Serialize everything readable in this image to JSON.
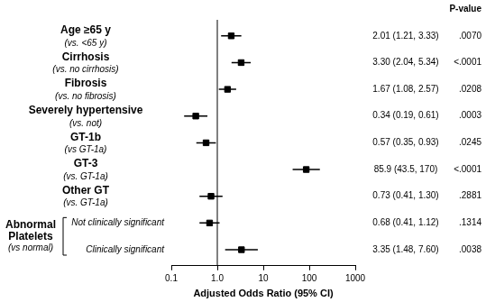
{
  "chart_data": {
    "type": "forest",
    "log": "x",
    "xlim": [
      0.1,
      1000
    ],
    "xticks": [
      0.1,
      {
        "value": 1,
        "label": "1.0"
      },
      10,
      100,
      1000
    ],
    "x_label": "Adjusted Odds Ratio (95% CI)",
    "column_header": "P-value",
    "reference_line": 1,
    "color": "#000000",
    "marker": "square",
    "grid": false,
    "rows": [
      {
        "label": "Age ≥65 y",
        "sublabel": "(vs. <65 y)",
        "value": 2.01,
        "ci": [
          1.21,
          3.33
        ],
        "value_label": "2.01 (1.21, 3.33)",
        "p_value": ".0070"
      },
      {
        "label": "Cirrhosis",
        "sublabel": "(vs. no cirrhosis)",
        "value": 3.3,
        "ci": [
          2.04,
          5.34
        ],
        "value_label": "3.30 (2.04, 5.34)",
        "p_value": "<.0001"
      },
      {
        "label": "Fibrosis",
        "sublabel": "(vs. no fibrosis)",
        "value": 1.67,
        "ci": [
          1.08,
          2.57
        ],
        "value_label": "1.67 (1.08, 2.57)",
        "p_value": ".0208"
      },
      {
        "label": "Severely hypertensive",
        "sublabel": "(vs. not)",
        "value": 0.34,
        "ci": [
          0.19,
          0.61
        ],
        "value_label": "0.34 (0.19, 0.61)",
        "p_value": ".0003"
      },
      {
        "label": "GT-1b",
        "sublabel": "(vs GT-1a)",
        "value": 0.57,
        "ci": [
          0.35,
          0.93
        ],
        "value_label": "0.57 (0.35, 0.93)",
        "p_value": ".0245"
      },
      {
        "label": "GT-3",
        "sublabel": "(vs. GT-1a)",
        "value": 85.9,
        "ci": [
          43.5,
          170
        ],
        "value_label": "85.9 (43.5, 170)",
        "p_value": "<.0001"
      },
      {
        "label": "Other GT",
        "sublabel": "(vs. GT-1a)",
        "value": 0.73,
        "ci": [
          0.41,
          1.3
        ],
        "value_label": "0.73 (0.41, 1.30)",
        "p_value": ".2881"
      },
      {
        "label": "Abnormal Platelets",
        "sublabel": "(vs normal)",
        "rows": [
          {
            "label": "Not clinically significant",
            "value": 0.68,
            "ci": [
              0.41,
              1.12
            ],
            "value_label": "0.68 (0.41, 1.12)",
            "p_value": ".1314"
          },
          {
            "label": "Clinically significant",
            "value": 3.35,
            "ci": [
              1.48,
              7.6
            ],
            "value_label": "3.35 (1.48, 7.60)",
            "p_value": ".0038"
          }
        ]
      }
    ]
  }
}
